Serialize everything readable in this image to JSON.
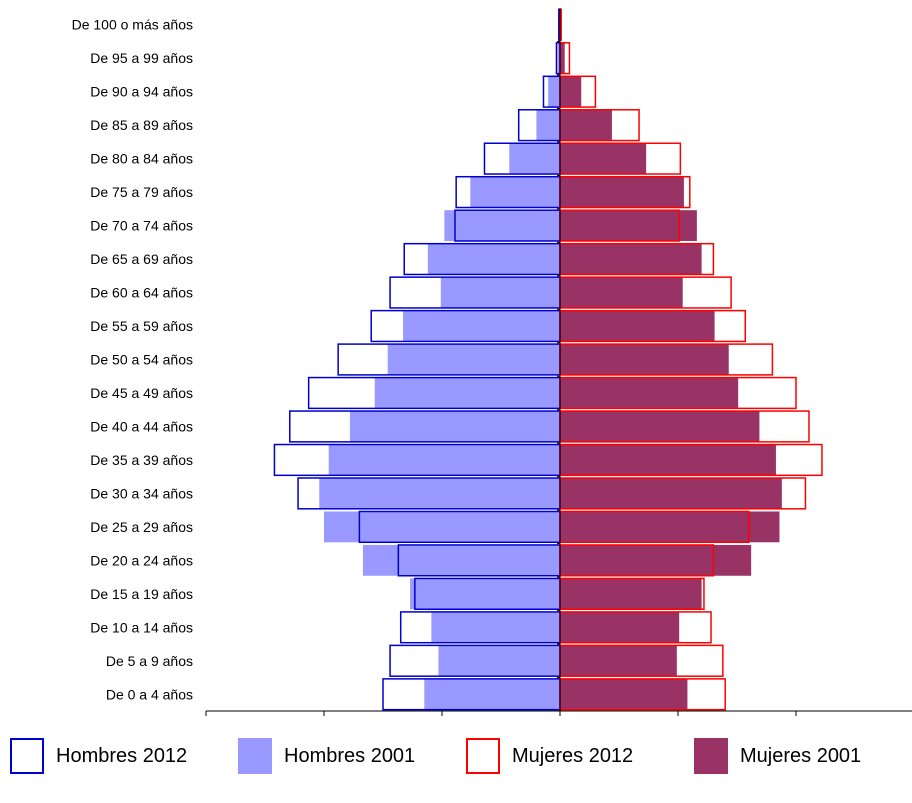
{
  "chart_data": {
    "type": "bar",
    "orientation": "horizontal",
    "subtype": "population-pyramid",
    "categories": [
      "De 100 o más años",
      "De 95 a 99 años",
      "De 90 a 94 años",
      "De 85 a 89 años",
      "De 80 a 84 años",
      "De 75 a 79 años",
      "De 70 a 74 años",
      "De 65 a 69 años",
      "De 60 a 64 años",
      "De 55 a 59 años",
      "De 50 a 54 años",
      "De 45 a 49 años",
      "De 40 a 44 años",
      "De 35 a 39 años",
      "De 30 a 34 años",
      "De 25 a 29 años",
      "De 20 a 24 años",
      "De 15 a 19 años",
      "De 10 a 14 años",
      "De 5 a 9 años",
      "De 0 a 4 años"
    ],
    "series": [
      {
        "name": "Hombres 2012",
        "side": "left",
        "style": "outline",
        "values": [
          0.01,
          0.03,
          0.14,
          0.35,
          0.64,
          0.88,
          0.89,
          1.32,
          1.44,
          1.6,
          1.88,
          2.13,
          2.29,
          2.42,
          2.22,
          1.7,
          1.37,
          1.23,
          1.35,
          1.44,
          1.5
        ]
      },
      {
        "name": "Hombres 2001",
        "side": "left",
        "style": "filled",
        "values": [
          0.0,
          0.02,
          0.1,
          0.2,
          0.43,
          0.76,
          0.98,
          1.12,
          1.01,
          1.33,
          1.46,
          1.57,
          1.78,
          1.96,
          2.04,
          2.0,
          1.67,
          1.27,
          1.09,
          1.03,
          1.15
        ]
      },
      {
        "name": "Mujeres 2012",
        "side": "right",
        "style": "outline",
        "values": [
          0.01,
          0.08,
          0.3,
          0.67,
          1.02,
          1.1,
          1.01,
          1.3,
          1.45,
          1.57,
          1.8,
          2.0,
          2.11,
          2.22,
          2.08,
          1.6,
          1.3,
          1.22,
          1.28,
          1.38,
          1.4
        ]
      },
      {
        "name": "Mujeres 2001",
        "side": "right",
        "style": "filled",
        "values": [
          0.01,
          0.04,
          0.18,
          0.44,
          0.73,
          1.05,
          1.16,
          1.2,
          1.04,
          1.31,
          1.43,
          1.51,
          1.69,
          1.83,
          1.88,
          1.86,
          1.62,
          1.2,
          1.01,
          0.99,
          1.08
        ]
      }
    ],
    "xlim": [
      -3,
      3
    ],
    "x_ticks": [
      3,
      2,
      1,
      0,
      1,
      2,
      3
    ],
    "xlabel": "",
    "ylabel": "",
    "title": "",
    "grid": false,
    "legend_position": "bottom",
    "colors": {
      "Hombres 2012": "#0000cc",
      "Hombres 2001": "#9999ff",
      "Mujeres 2012": "#ff0000",
      "Mujeres 2001": "#993366"
    }
  },
  "legend": {
    "items": [
      {
        "label": "Hombres 2012"
      },
      {
        "label": "Hombres 2001"
      },
      {
        "label": "Mujeres 2012"
      },
      {
        "label": "Mujeres 2001"
      }
    ]
  }
}
